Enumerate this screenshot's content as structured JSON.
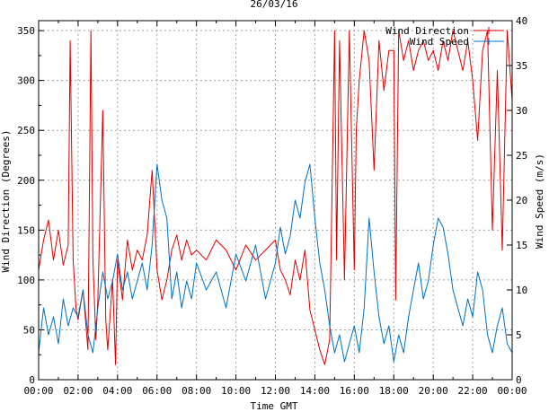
{
  "chart_data": {
    "type": "line",
    "title": "26/03/16",
    "xlabel": "Time GMT",
    "ylabel_left": "Wind Direction (Degrees)",
    "ylabel_right": "Wind Speed (m/s)",
    "x_range_hours": [
      0,
      24
    ],
    "y_left_range": [
      0,
      360
    ],
    "y_right_range": [
      0,
      40
    ],
    "grid": true,
    "legend_position": "top-right",
    "x_ticks": [
      "00:00",
      "02:00",
      "04:00",
      "06:00",
      "08:00",
      "10:00",
      "12:00",
      "14:00",
      "16:00",
      "18:00",
      "20:00",
      "22:00",
      "00:00"
    ],
    "y_left_ticks": [
      "0",
      "50",
      "100",
      "150",
      "200",
      "250",
      "300",
      "350"
    ],
    "y_right_ticks": [
      "0",
      "5",
      "10",
      "15",
      "20",
      "25",
      "30",
      "35",
      "40"
    ],
    "series": [
      {
        "name": "Wind Direction",
        "axis": "left",
        "color": "#dd0000",
        "x": [
          0.0,
          0.25,
          0.5,
          0.75,
          1.0,
          1.25,
          1.5,
          1.6,
          1.75,
          1.9,
          2.0,
          2.25,
          2.5,
          2.65,
          2.75,
          2.9,
          3.0,
          3.25,
          3.4,
          3.5,
          3.75,
          3.9,
          4.0,
          4.25,
          4.5,
          4.75,
          5.0,
          5.25,
          5.5,
          5.75,
          6.0,
          6.25,
          6.5,
          6.75,
          7.0,
          7.25,
          7.5,
          7.75,
          8.0,
          8.5,
          9.0,
          9.5,
          10.0,
          10.5,
          11.0,
          11.5,
          12.0,
          12.25,
          12.5,
          12.75,
          13.0,
          13.25,
          13.5,
          13.75,
          14.0,
          14.25,
          14.5,
          14.75,
          15.0,
          15.1,
          15.25,
          15.5,
          15.75,
          16.0,
          16.1,
          16.25,
          16.5,
          16.75,
          17.0,
          17.25,
          17.5,
          17.75,
          18.0,
          18.1,
          18.25,
          18.5,
          18.75,
          19.0,
          19.25,
          19.5,
          19.75,
          20.0,
          20.25,
          20.5,
          20.75,
          21.0,
          21.25,
          21.5,
          21.75,
          22.0,
          22.25,
          22.5,
          22.75,
          23.0,
          23.25,
          23.5,
          23.75,
          24.0
        ],
        "values": [
          110,
          140,
          160,
          120,
          150,
          115,
          135,
          340,
          120,
          70,
          60,
          90,
          30,
          350,
          120,
          40,
          80,
          270,
          60,
          30,
          100,
          15,
          120,
          80,
          140,
          110,
          130,
          120,
          145,
          210,
          110,
          80,
          100,
          130,
          145,
          120,
          140,
          125,
          130,
          120,
          140,
          130,
          110,
          135,
          120,
          130,
          140,
          110,
          100,
          85,
          120,
          100,
          130,
          70,
          50,
          30,
          15,
          40,
          350,
          120,
          340,
          100,
          350,
          110,
          250,
          300,
          350,
          320,
          210,
          340,
          290,
          330,
          330,
          80,
          350,
          320,
          340,
          310,
          330,
          340,
          320,
          330,
          310,
          340,
          320,
          350,
          330,
          310,
          340,
          300,
          240,
          330,
          350,
          150,
          310,
          130,
          350,
          280
        ]
      },
      {
        "name": "Wind Speed",
        "axis": "right",
        "color": "#0070c0",
        "x": [
          0.0,
          0.25,
          0.5,
          0.75,
          1.0,
          1.25,
          1.5,
          1.75,
          2.0,
          2.25,
          2.5,
          2.75,
          3.0,
          3.25,
          3.5,
          3.75,
          4.0,
          4.25,
          4.5,
          4.75,
          5.0,
          5.25,
          5.5,
          5.75,
          6.0,
          6.25,
          6.5,
          6.75,
          7.0,
          7.25,
          7.5,
          7.75,
          8.0,
          8.5,
          9.0,
          9.5,
          10.0,
          10.5,
          11.0,
          11.5,
          12.0,
          12.25,
          12.5,
          12.75,
          13.0,
          13.25,
          13.5,
          13.75,
          14.0,
          14.25,
          14.5,
          14.75,
          15.0,
          15.25,
          15.5,
          15.75,
          16.0,
          16.25,
          16.5,
          16.75,
          17.0,
          17.25,
          17.5,
          17.75,
          18.0,
          18.25,
          18.5,
          18.75,
          19.0,
          19.25,
          19.5,
          19.75,
          20.0,
          20.25,
          20.5,
          20.75,
          21.0,
          21.25,
          21.5,
          21.75,
          22.0,
          22.25,
          22.5,
          22.75,
          23.0,
          23.25,
          23.5,
          23.75,
          24.0
        ],
        "values": [
          3,
          8,
          5,
          7,
          4,
          9,
          6,
          8,
          7,
          10,
          5,
          3,
          8,
          12,
          9,
          11,
          14,
          10,
          12,
          9,
          11,
          13,
          10,
          15,
          24,
          20,
          18,
          9,
          12,
          8,
          11,
          9,
          13,
          10,
          12,
          8,
          14,
          11,
          15,
          9,
          13,
          17,
          14,
          16,
          20,
          18,
          22,
          24,
          18,
          13,
          10,
          6,
          3,
          5,
          2,
          4,
          6,
          3,
          8,
          18,
          12,
          7,
          4,
          6,
          2,
          5,
          3,
          7,
          10,
          13,
          9,
          11,
          15,
          18,
          17,
          14,
          10,
          8,
          6,
          9,
          7,
          12,
          10,
          5,
          3,
          6,
          8,
          4,
          3
        ]
      }
    ]
  }
}
